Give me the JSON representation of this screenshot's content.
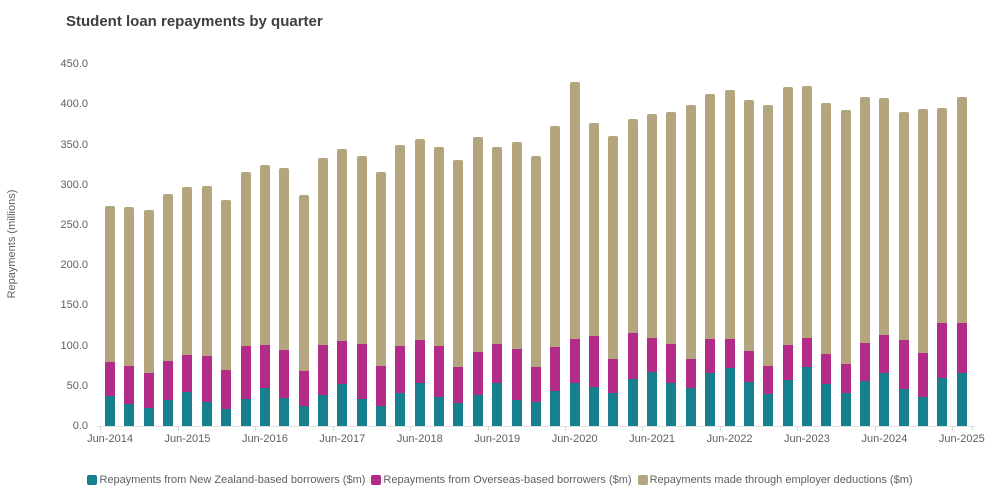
{
  "y_axis": {
    "title": "Repayments (millions)",
    "tick_labels": [
      "450.0",
      "400.0",
      "350.0",
      "300.0",
      "250.0",
      "200.0",
      "150.0",
      "100.0",
      "50.0",
      "0.0"
    ]
  },
  "x_axis": {
    "visible_tick_labels": [
      "Jun-2014",
      "Jun-2015",
      "Jun-2016",
      "Jun-2017",
      "Jun-2018",
      "Jun-2019",
      "Jun-2020",
      "Jun-2021",
      "Jun-2022",
      "Jun-2023",
      "Jun-2024",
      "Jun-2025"
    ]
  },
  "style": {
    "background": "#FFFFFF",
    "title_color": "#3F3F3F",
    "axis_text_color": "#5F5F5F",
    "axis_line_color": "#E0E0E0"
  },
  "chart_data": {
    "type": "bar",
    "stacked": true,
    "title": "Student loan repayments by quarter",
    "xlabel": "",
    "ylabel": "Repayments (millions)",
    "ylim": [
      0,
      450
    ],
    "grid": false,
    "legend_position": "bottom",
    "categories": [
      "Jun-2014",
      "Sep-2014",
      "Dec-2014",
      "Mar-2015",
      "Jun-2015",
      "Sep-2015",
      "Dec-2015",
      "Mar-2016",
      "Jun-2016",
      "Sep-2016",
      "Dec-2016",
      "Mar-2017",
      "Jun-2017",
      "Sep-2017",
      "Dec-2017",
      "Mar-2018",
      "Jun-2018",
      "Sep-2018",
      "Dec-2018",
      "Mar-2019",
      "Jun-2019",
      "Sep-2019",
      "Dec-2019",
      "Mar-2020",
      "Jun-2020",
      "Sep-2020",
      "Dec-2020",
      "Mar-2021",
      "Jun-2021",
      "Sep-2021",
      "Dec-2021",
      "Mar-2022",
      "Jun-2022",
      "Sep-2022",
      "Dec-2022",
      "Mar-2023",
      "Jun-2023",
      "Sep-2023",
      "Dec-2023",
      "Mar-2024",
      "Jun-2024",
      "Sep-2024",
      "Dec-2024",
      "Mar-2025",
      "Jun-2025"
    ],
    "series": [
      {
        "name": "Repayments from New Zealand-based borrowers ($m)",
        "color": "#17808E",
        "values": [
          37.0,
          27.0,
          22.0,
          32.3,
          42.7,
          30.0,
          21.0,
          33.6,
          47.0,
          34.4,
          24.9,
          39.0,
          52.0,
          34.0,
          25.0,
          40.6,
          53.9,
          35.5,
          29.0,
          38.5,
          54.0,
          32.5,
          30.3,
          43.7,
          53.9,
          48.1,
          40.6,
          58.0,
          67.5,
          53.9,
          46.9,
          66.3,
          72.5,
          54.5,
          39.8,
          56.8,
          73.0,
          52.0,
          40.6,
          56.5,
          65.9,
          46.2,
          35.8,
          59.3,
          66.3
        ]
      },
      {
        "name": "Repayments from Overseas-based borrowers ($m)",
        "color": "#B12B87",
        "values": [
          42.0,
          48.0,
          43.5,
          49.0,
          45.6,
          56.5,
          48.7,
          65.9,
          54.0,
          60.1,
          43.9,
          61.7,
          54.0,
          68.5,
          49.5,
          58.9,
          53.1,
          64.5,
          44.8,
          53.5,
          48.0,
          62.9,
          43.1,
          54.9,
          54.5,
          63.8,
          42.3,
          58.0,
          42.5,
          48.5,
          36.0,
          41.5,
          35.5,
          39.2,
          34.4,
          43.9,
          36.5,
          37.0,
          36.9,
          46.3,
          47.1,
          60.3,
          54.6,
          69.2,
          62.2
        ]
      },
      {
        "name": "Repayments made through employer deductions ($m)",
        "color": "#B3A57E",
        "values": [
          195.0,
          197.0,
          203.5,
          207.4,
          208.7,
          212.5,
          211.3,
          216.0,
          224.0,
          227.0,
          218.4,
          232.8,
          239.0,
          233.5,
          242.0,
          250.0,
          250.5,
          246.5,
          257.2,
          267.5,
          244.5,
          257.6,
          262.6,
          274.4,
          319.1,
          265.1,
          278.1,
          265.4,
          278.0,
          288.6,
          316.1,
          304.7,
          309.5,
          311.8,
          324.8,
          321.3,
          313.5,
          313.0,
          315.5,
          306.2,
          294.5,
          284.5,
          304.1,
          267.5,
          280.5
        ]
      }
    ]
  }
}
